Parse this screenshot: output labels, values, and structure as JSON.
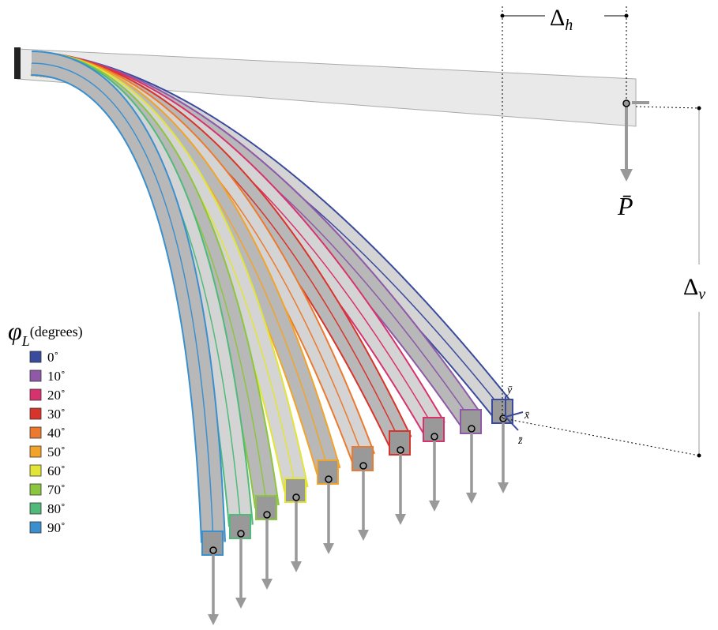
{
  "delta_h": {
    "symbol": "Δ",
    "subscript": "h"
  },
  "load": "P̄",
  "delta_v": {
    "symbol": "Δ",
    "subscript": "v"
  },
  "axes": {
    "y": "ȳ",
    "x": "x̄",
    "z": "z̄"
  },
  "legend": {
    "title": {
      "symbol": "φ",
      "subscript": "L",
      "unit": "(degrees)"
    },
    "items": [
      {
        "label": "0˚",
        "color": "#3a4a9c"
      },
      {
        "label": "10˚",
        "color": "#8e5aa8"
      },
      {
        "label": "20˚",
        "color": "#d8326e"
      },
      {
        "label": "30˚",
        "color": "#d9342c"
      },
      {
        "label": "40˚",
        "color": "#ec7a2e"
      },
      {
        "label": "50˚",
        "color": "#f2a42a"
      },
      {
        "label": "60˚",
        "color": "#e3e536"
      },
      {
        "label": "70˚",
        "color": "#8cc63f"
      },
      {
        "label": "80˚",
        "color": "#4fba7a"
      },
      {
        "label": "90˚",
        "color": "#3a8fcf"
      }
    ]
  }
}
